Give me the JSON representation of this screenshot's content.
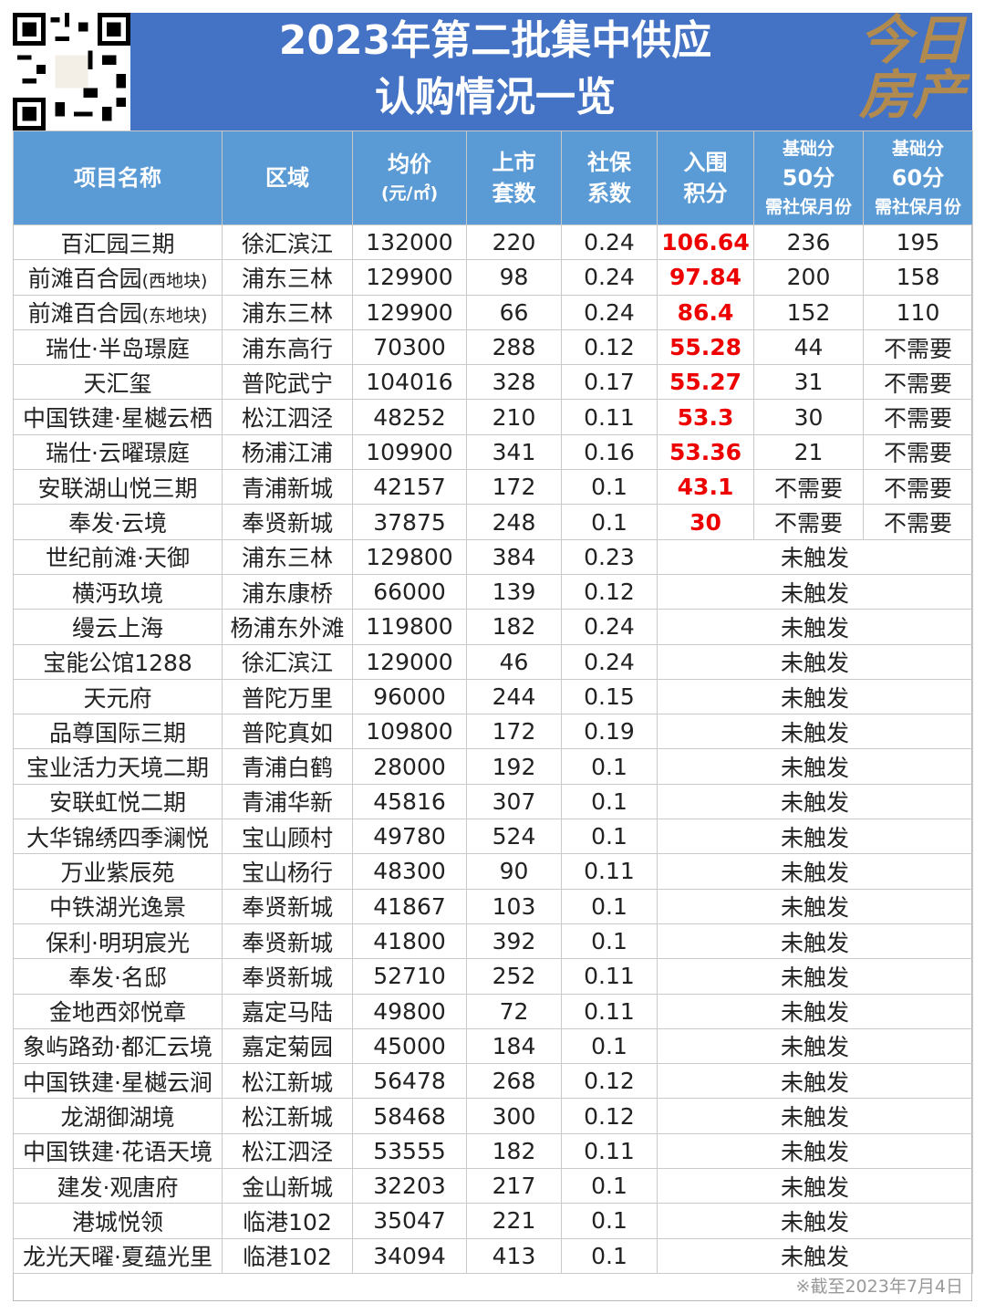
{
  "title": {
    "line1": "2023年第二批集中供应",
    "line2": "认购情况一览",
    "logo": "今日房产"
  },
  "headers": {
    "name": "项目名称",
    "area": "区域",
    "price": "均价",
    "price_unit": "(元/㎡)",
    "units": "上市套数",
    "coef": "社保系数",
    "score": "入围积分",
    "b50": "基础分",
    "b50b": "50分",
    "b50c": "需社保月份",
    "b60": "基础分",
    "b60b": "60分",
    "b60c": "需社保月份"
  },
  "rows": [
    [
      "百汇园三期",
      "",
      "徐汇滨江",
      "132000",
      "220",
      "0.24",
      "106.64",
      "236",
      "195"
    ],
    [
      "前滩百合园",
      "(西地块)",
      "浦东三林",
      "129900",
      "98",
      "0.24",
      "97.84",
      "200",
      "158"
    ],
    [
      "前滩百合园",
      "(东地块)",
      "浦东三林",
      "129900",
      "66",
      "0.24",
      "86.4",
      "152",
      "110"
    ],
    [
      "瑞仕·半岛璟庭",
      "",
      "浦东高行",
      "70300",
      "288",
      "0.12",
      "55.28",
      "44",
      "不需要"
    ],
    [
      "天汇玺",
      "",
      "普陀武宁",
      "104016",
      "328",
      "0.17",
      "55.27",
      "31",
      "不需要"
    ],
    [
      "中国铁建·星樾云栖",
      "",
      "松江泗泾",
      "48252",
      "210",
      "0.11",
      "53.3",
      "30",
      "不需要"
    ],
    [
      "瑞仕·云曜璟庭",
      "",
      "杨浦江浦",
      "109900",
      "341",
      "0.16",
      "53.36",
      "21",
      "不需要"
    ],
    [
      "安联湖山悦三期",
      "",
      "青浦新城",
      "42157",
      "172",
      "0.1",
      "43.1",
      "不需要",
      "不需要"
    ],
    [
      "奉发·云境",
      "",
      "奉贤新城",
      "37875",
      "248",
      "0.1",
      "30",
      "不需要",
      "不需要"
    ],
    [
      "世纪前滩·天御",
      "",
      "浦东三林",
      "129800",
      "384",
      "0.23",
      "未触发"
    ],
    [
      "横沔玖境",
      "",
      "浦东康桥",
      "66000",
      "139",
      "0.12",
      "未触发"
    ],
    [
      "缦云上海",
      "",
      "杨浦东外滩",
      "119800",
      "182",
      "0.24",
      "未触发"
    ],
    [
      "宝能公馆1288",
      "",
      "徐汇滨江",
      "129000",
      "46",
      "0.24",
      "未触发"
    ],
    [
      "天元府",
      "",
      "普陀万里",
      "96000",
      "244",
      "0.15",
      "未触发"
    ],
    [
      "品尊国际三期",
      "",
      "普陀真如",
      "109800",
      "172",
      "0.19",
      "未触发"
    ],
    [
      "宝业活力天境二期",
      "",
      "青浦白鹤",
      "28000",
      "192",
      "0.1",
      "未触发"
    ],
    [
      "安联虹悦二期",
      "",
      "青浦华新",
      "45816",
      "307",
      "0.1",
      "未触发"
    ],
    [
      "大华锦绣四季澜悦",
      "",
      "宝山顾村",
      "49780",
      "524",
      "0.1",
      "未触发"
    ],
    [
      "万业紫辰苑",
      "",
      "宝山杨行",
      "48300",
      "90",
      "0.11",
      "未触发"
    ],
    [
      "中铁湖光逸景",
      "",
      "奉贤新城",
      "41867",
      "103",
      "0.1",
      "未触发"
    ],
    [
      "保利·明玥宸光",
      "",
      "奉贤新城",
      "41800",
      "392",
      "0.1",
      "未触发"
    ],
    [
      "奉发·名邸",
      "",
      "奉贤新城",
      "52710",
      "252",
      "0.11",
      "未触发"
    ],
    [
      "金地西郊悦章",
      "",
      "嘉定马陆",
      "49800",
      "72",
      "0.11",
      "未触发"
    ],
    [
      "象屿路劲·都汇云境",
      "",
      "嘉定菊园",
      "45000",
      "184",
      "0.1",
      "未触发"
    ],
    [
      "中国铁建·星樾云涧",
      "",
      "松江新城",
      "56478",
      "268",
      "0.12",
      "未触发"
    ],
    [
      "龙湖御湖境",
      "",
      "松江新城",
      "58468",
      "300",
      "0.12",
      "未触发"
    ],
    [
      "中国铁建·花语天境",
      "",
      "松江泗泾",
      "53555",
      "182",
      "0.11",
      "未触发"
    ],
    [
      "建发·观唐府",
      "",
      "金山新城",
      "32203",
      "217",
      "0.1",
      "未触发"
    ],
    [
      "港城悦领",
      "",
      "临港102",
      "35047",
      "221",
      "0.1",
      "未触发"
    ],
    [
      "龙光天曜·夏蕴光里",
      "",
      "临港102",
      "34094",
      "413",
      "0.1",
      "未触发"
    ]
  ],
  "footer": "※截至2023年7月4日",
  "colors": {
    "title_bg": "#4472c4",
    "header_bg": "#5b9bd5",
    "score_red": "#e00000",
    "logo_gold": "#b08a4e"
  }
}
